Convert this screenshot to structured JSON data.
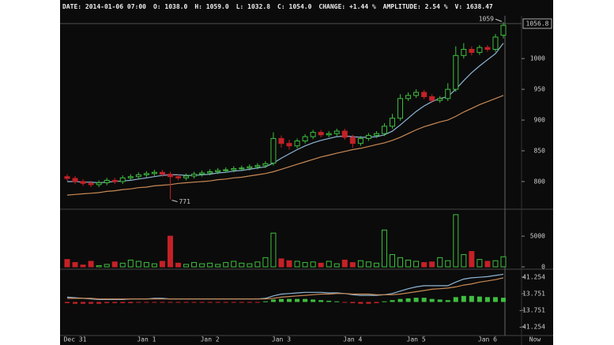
{
  "header": {
    "items": [
      "DATE: 2014-01-06 07:00",
      "O: 1038.0",
      "H: 1059.0",
      "L: 1032.8",
      "C: 1054.0",
      "CHANGE: +1.44 %",
      "AMPLITUDE: 2.54 %",
      "V: 1638.47"
    ]
  },
  "chart_data": [
    {
      "type": "candlestick",
      "categories": [
        null,
        "Dec 31",
        null,
        null,
        null,
        null,
        null,
        null,
        null,
        null,
        "Jan 1",
        null,
        null,
        null,
        null,
        null,
        null,
        null,
        "Jan 2",
        null,
        null,
        null,
        null,
        null,
        null,
        null,
        null,
        "Jan 3",
        null,
        null,
        null,
        null,
        null,
        null,
        null,
        null,
        "Jan 4",
        null,
        null,
        null,
        null,
        null,
        null,
        null,
        "Jan 5",
        null,
        null,
        null,
        null,
        null,
        null,
        null,
        null,
        "Jan 6",
        null,
        null
      ],
      "x_end_label": "Now",
      "open": [
        808,
        805,
        800,
        797,
        795,
        798,
        802,
        800,
        806,
        808,
        811,
        813,
        815,
        812,
        808,
        806,
        809,
        812,
        814,
        816,
        818,
        819,
        821,
        822,
        824,
        826,
        830,
        870,
        862,
        858,
        866,
        873,
        880,
        876,
        878,
        882,
        872,
        862,
        870,
        875,
        878,
        890,
        903,
        935,
        940,
        945,
        938,
        932,
        935,
        950,
        1005,
        1015,
        1010,
        1018,
        1015,
        1038
      ],
      "high": [
        812,
        809,
        804,
        801,
        802,
        806,
        806,
        810,
        812,
        815,
        817,
        819,
        819,
        816,
        812,
        813,
        816,
        818,
        820,
        822,
        823,
        825,
        826,
        828,
        830,
        833,
        880,
        875,
        868,
        870,
        877,
        884,
        884,
        882,
        886,
        886,
        876,
        874,
        879,
        882,
        895,
        910,
        942,
        945,
        950,
        949,
        942,
        939,
        960,
        1020,
        1025,
        1020,
        1022,
        1022,
        1040,
        1059
      ],
      "low": [
        801,
        796,
        793,
        791,
        791,
        794,
        796,
        796,
        802,
        804,
        807,
        809,
        808,
        771,
        802,
        802,
        805,
        808,
        810,
        812,
        814,
        815,
        817,
        818,
        820,
        822,
        826,
        855,
        852,
        854,
        862,
        869,
        872,
        872,
        874,
        868,
        855,
        858,
        866,
        871,
        874,
        886,
        899,
        931,
        936,
        934,
        928,
        928,
        931,
        946,
        1000,
        1005,
        1006,
        1011,
        1011,
        1032.8
      ],
      "close": [
        805,
        800,
        797,
        795,
        798,
        802,
        800,
        806,
        808,
        811,
        813,
        815,
        812,
        808,
        806,
        809,
        812,
        814,
        816,
        818,
        819,
        821,
        822,
        824,
        826,
        829,
        870,
        862,
        858,
        866,
        873,
        880,
        876,
        878,
        882,
        872,
        862,
        870,
        875,
        878,
        890,
        903,
        935,
        940,
        945,
        938,
        932,
        935,
        950,
        1005,
        1015,
        1010,
        1018,
        1015,
        1035,
        1054
      ],
      "up_color": "#3fbf3f",
      "down_color": "#c42127",
      "lines": [
        {
          "color": "#8fb6d6",
          "values": [
            800,
            800,
            799,
            799,
            798,
            799,
            800,
            801,
            802,
            804,
            806,
            808,
            810,
            811,
            811,
            810,
            810,
            811,
            812,
            814,
            815,
            817,
            818,
            820,
            822,
            824,
            830,
            838,
            845,
            852,
            858,
            863,
            867,
            870,
            873,
            874,
            873,
            872,
            872,
            873,
            876,
            882,
            892,
            903,
            914,
            923,
            930,
            935,
            938,
            950,
            964,
            977,
            988,
            998,
            1008,
            1025
          ]
        },
        {
          "color": "#c98a55",
          "values": [
            778,
            779,
            780,
            781,
            782,
            784,
            785,
            787,
            788,
            790,
            791,
            793,
            794,
            795,
            797,
            798,
            799,
            800,
            801,
            803,
            804,
            806,
            807,
            809,
            811,
            813,
            816,
            820,
            824,
            828,
            832,
            836,
            840,
            843,
            846,
            849,
            852,
            854,
            857,
            860,
            863,
            867,
            872,
            878,
            884,
            889,
            893,
            897,
            900,
            906,
            913,
            919,
            925,
            930,
            935,
            940
          ]
        }
      ],
      "max_label": 1059,
      "min_label": 771,
      "last_price": 1056.8,
      "ylim": [
        755,
        1067
      ],
      "yticks": [
        800,
        850,
        900,
        950,
        1000
      ]
    },
    {
      "type": "volume",
      "values": [
        1200,
        700,
        300,
        900,
        200,
        400,
        800,
        600,
        1100,
        900,
        700,
        500,
        900,
        5000,
        600,
        400,
        700,
        500,
        600,
        400,
        700,
        900,
        600,
        500,
        800,
        1500,
        5500,
        1300,
        1000,
        900,
        700,
        800,
        600,
        900,
        500,
        1100,
        700,
        1000,
        800,
        600,
        6000,
        2000,
        1500,
        1100,
        900,
        700,
        800,
        1500,
        1000,
        8500,
        2000,
        2500,
        1200,
        900,
        1000,
        1638.47
      ],
      "ylim": [
        0,
        9000
      ],
      "yticks": [
        0,
        5000
      ]
    },
    {
      "type": "macd",
      "lines": [
        {
          "color": "#8fb6d6",
          "values": [
            8,
            7,
            6,
            5,
            4,
            4,
            4,
            4,
            5,
            5,
            5,
            6,
            6,
            5,
            5,
            5,
            5,
            5,
            5,
            5,
            5,
            5,
            5,
            5,
            5,
            6,
            10,
            13,
            14,
            15,
            16,
            16,
            16,
            15,
            15,
            14,
            12,
            11,
            11,
            11,
            12,
            14,
            18,
            22,
            25,
            27,
            27,
            27,
            27,
            33,
            38,
            40,
            41,
            42,
            44,
            46
          ]
        },
        {
          "color": "#c98a55",
          "values": [
            6,
            6,
            6,
            6,
            5,
            5,
            5,
            5,
            5,
            5,
            5,
            5,
            5,
            5,
            5,
            5,
            5,
            5,
            5,
            5,
            5,
            5,
            5,
            5,
            5,
            5,
            6,
            8,
            9,
            10,
            11,
            12,
            13,
            13,
            14,
            14,
            13,
            13,
            13,
            12,
            12,
            12,
            13,
            15,
            17,
            19,
            21,
            22,
            23,
            25,
            28,
            30,
            33,
            35,
            37,
            40
          ]
        }
      ],
      "histogram": [
        -2,
        -3,
        -3,
        -3,
        -3,
        -2,
        -2,
        -2,
        -2,
        -1,
        -1,
        -1,
        -1,
        -1,
        -1,
        -1,
        -1,
        -1,
        -1,
        -1,
        -1,
        -1,
        -1,
        -1,
        -1,
        1,
        4,
        5,
        5,
        5,
        5,
        4,
        3,
        2,
        1,
        -1,
        -2,
        -3,
        -3,
        -2,
        1,
        3,
        5,
        6,
        7,
        7,
        5,
        4,
        3,
        8,
        10,
        10,
        9,
        8,
        8,
        7
      ],
      "up_color": "#3fbf3f",
      "down_color": "#c42127",
      "ylim": [
        -55.7,
        51.7
      ],
      "yticks": [
        41.254,
        13.751,
        -13.751,
        -41.254
      ]
    }
  ]
}
